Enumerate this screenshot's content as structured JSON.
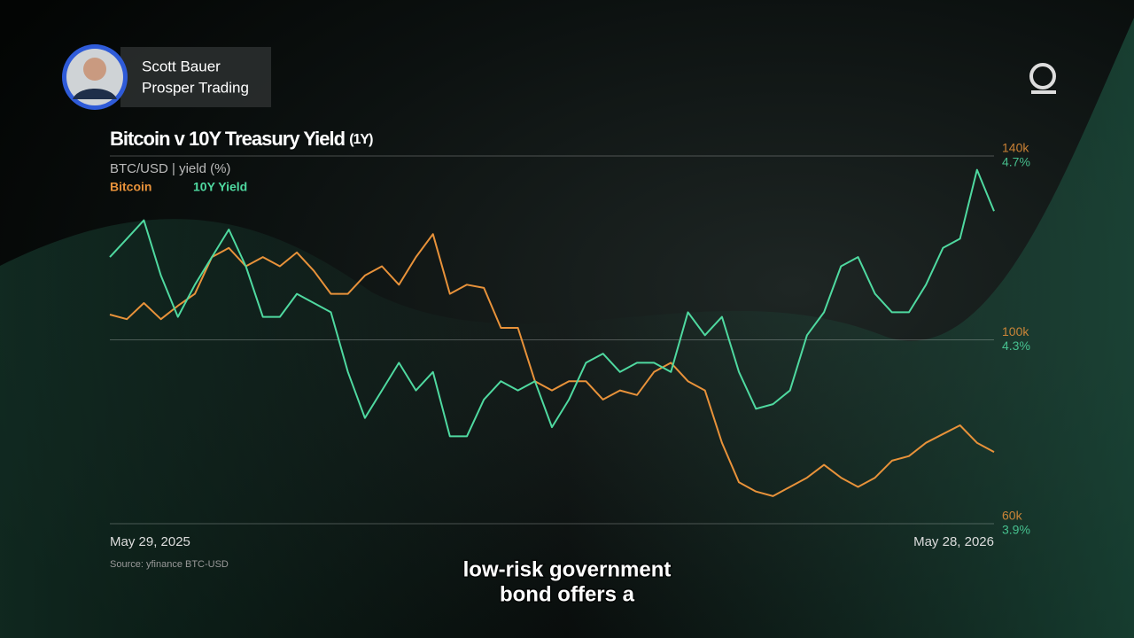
{
  "presenter": {
    "name": "Scott Bauer",
    "company": "Prosper Trading"
  },
  "caption": [
    "low-risk government",
    "bond offers a"
  ],
  "chart_data": {
    "type": "line",
    "title": "Bitcoin v 10Y Treasury Yield",
    "period": "(1Y)",
    "subtitle": "BTC/USD | yield (%)",
    "source": "Source: yfinance BTC-USD",
    "categories": [
      "May 29, 2025",
      null,
      null,
      null,
      null,
      null,
      null,
      null,
      null,
      null,
      null,
      null,
      null,
      null,
      null,
      null,
      null,
      null,
      null,
      null,
      null,
      null,
      null,
      null,
      null,
      null,
      null,
      null,
      null,
      null,
      null,
      null,
      null,
      null,
      null,
      null,
      null,
      null,
      null,
      null,
      null,
      null,
      null,
      null,
      null,
      null,
      null,
      null,
      null,
      null,
      null,
      null,
      "May 28, 2026"
    ],
    "series": [
      {
        "name": "Bitcoin",
        "color": "#e8923a",
        "values": [
          105500,
          104500,
          108000,
          104500,
          107400,
          110000,
          118000,
          120000,
          116000,
          118000,
          116000,
          119000,
          115000,
          110000,
          110000,
          114000,
          116000,
          112000,
          118000,
          123000,
          110000,
          112000,
          111300,
          102600,
          102600,
          91000,
          89000,
          91000,
          91000,
          87000,
          89000,
          88000,
          93000,
          95000,
          91000,
          89000,
          77600,
          69000,
          67000,
          66000,
          68000,
          70000,
          72800,
          70000,
          68000,
          70000,
          73700,
          74700,
          77600,
          79500,
          81400,
          77600,
          75600
        ]
      },
      {
        "name": "10Y Yield",
        "color": "#4fd9a0",
        "axis": "y2",
        "values": [
          4.48,
          4.52,
          4.56,
          4.44,
          4.35,
          4.42,
          4.48,
          4.54,
          4.46,
          4.35,
          4.35,
          4.4,
          4.38,
          4.36,
          4.23,
          4.13,
          4.19,
          4.25,
          4.19,
          4.23,
          4.09,
          4.09,
          4.17,
          4.21,
          4.19,
          4.21,
          4.11,
          4.17,
          4.25,
          4.27,
          4.23,
          4.25,
          4.25,
          4.23,
          4.36,
          4.31,
          4.35,
          4.23,
          4.15,
          4.16,
          4.19,
          4.31,
          4.36,
          4.46,
          4.48,
          4.4,
          4.36,
          4.36,
          4.42,
          4.5,
          4.52,
          4.67,
          4.58
        ]
      }
    ],
    "ylim": [
      60000,
      140000
    ],
    "yticks": [
      {
        "value": 60000,
        "label": "60k"
      },
      {
        "value": 100000,
        "label": "100k"
      },
      {
        "value": 140000,
        "label": "140k"
      }
    ],
    "y2lim": [
      3.9,
      4.7
    ],
    "y2ticks": [
      {
        "value": 3.9,
        "label": "3.9%"
      },
      {
        "value": 4.3,
        "label": "4.3%"
      },
      {
        "value": 4.7,
        "label": "4.7%"
      }
    ],
    "grid": true
  }
}
